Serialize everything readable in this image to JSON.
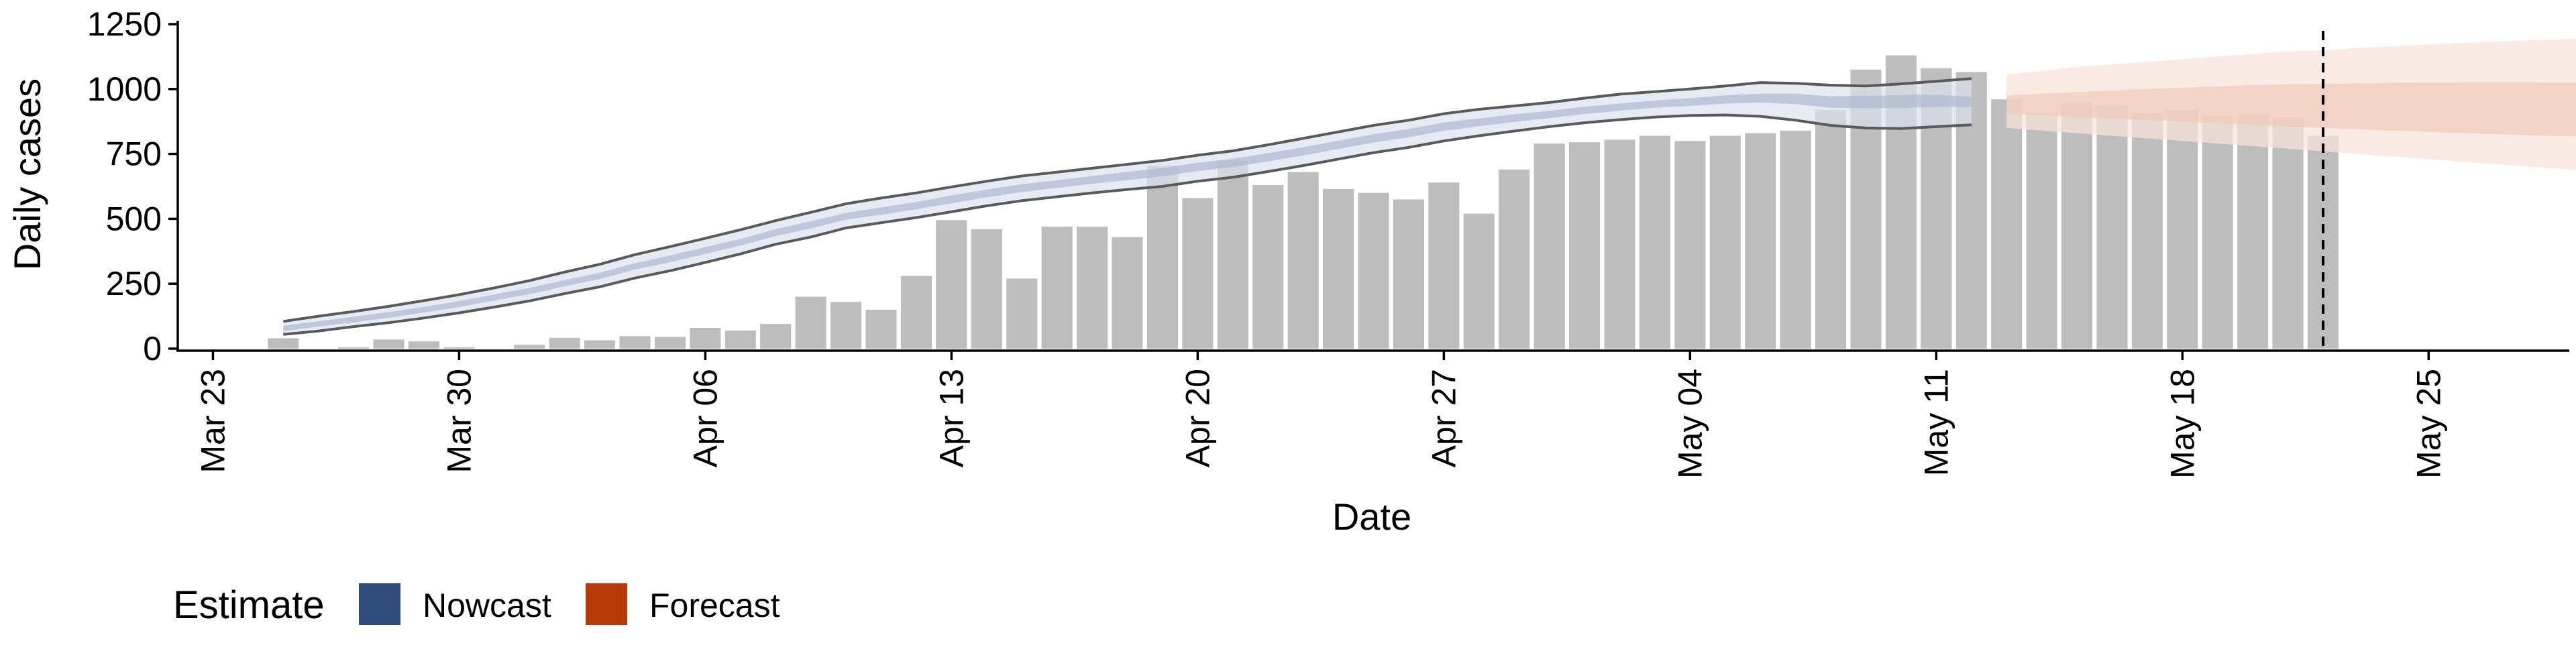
{
  "chart_data": {
    "type": "bar",
    "xlabel": "Date",
    "ylabel": "Daily cases",
    "ylim": [
      0,
      1250
    ],
    "yticks": [
      0,
      250,
      500,
      750,
      1000,
      1250
    ],
    "xticks": [
      {
        "date": "2020-03-23",
        "label": "Mar 23"
      },
      {
        "date": "2020-03-30",
        "label": "Mar 30"
      },
      {
        "date": "2020-04-06",
        "label": "Apr 06"
      },
      {
        "date": "2020-04-13",
        "label": "Apr 13"
      },
      {
        "date": "2020-04-20",
        "label": "Apr 20"
      },
      {
        "date": "2020-04-27",
        "label": "Apr 27"
      },
      {
        "date": "2020-05-04",
        "label": "May 04"
      },
      {
        "date": "2020-05-11",
        "label": "May 11"
      },
      {
        "date": "2020-05-18",
        "label": "May 18"
      },
      {
        "date": "2020-05-25",
        "label": "May 25"
      }
    ],
    "x_range": [
      "2020-03-22",
      "2020-05-29"
    ],
    "reported_cases": {
      "start_date": "2020-03-25",
      "values": [
        40,
        0,
        5,
        35,
        28,
        5,
        0,
        15,
        42,
        32,
        48,
        45,
        80,
        70,
        95,
        200,
        180,
        150,
        280,
        495,
        460,
        270,
        470,
        470,
        430,
        705,
        580,
        725,
        630,
        680,
        615,
        600,
        575,
        640,
        520,
        690,
        790,
        795,
        805,
        820,
        800,
        820,
        830,
        840,
        920,
        1075,
        1130,
        1080,
        1065,
        960,
        910,
        945,
        935,
        905,
        920,
        895,
        900,
        890,
        820
      ]
    },
    "nowcast": {
      "start_date": "2020-03-25",
      "median": [
        78,
        95,
        112,
        130,
        150,
        172,
        197,
        222,
        252,
        280,
        317,
        346,
        378,
        410,
        447,
        477,
        510,
        530,
        551,
        575,
        598,
        618,
        634,
        650,
        665,
        680,
        700,
        716,
        737,
        760,
        785,
        810,
        830,
        855,
        872,
        888,
        902,
        918,
        930,
        942,
        950,
        960,
        965,
        962,
        950,
        950,
        952,
        955,
        950
      ],
      "outer_low": [
        55,
        68,
        85,
        100,
        118,
        138,
        160,
        184,
        212,
        238,
        272,
        300,
        332,
        365,
        402,
        430,
        465,
        485,
        505,
        527,
        550,
        570,
        585,
        600,
        613,
        625,
        645,
        660,
        682,
        705,
        730,
        755,
        775,
        800,
        820,
        838,
        855,
        870,
        882,
        892,
        898,
        900,
        895,
        880,
        860,
        850,
        848,
        855,
        862
      ],
      "outer_high": [
        105,
        125,
        143,
        163,
        185,
        208,
        234,
        262,
        295,
        325,
        362,
        393,
        425,
        458,
        493,
        525,
        558,
        580,
        600,
        623,
        645,
        665,
        680,
        695,
        710,
        725,
        745,
        762,
        785,
        810,
        835,
        860,
        880,
        905,
        922,
        935,
        948,
        965,
        980,
        990,
        1000,
        1012,
        1025,
        1022,
        1015,
        1012,
        1020,
        1030,
        1040
      ],
      "inner_low": [
        68,
        85,
        101,
        119,
        139,
        161,
        185,
        210,
        240,
        268,
        305,
        333,
        365,
        397,
        434,
        463,
        497,
        516,
        537,
        560,
        583,
        603,
        619,
        635,
        649,
        664,
        684,
        700,
        721,
        744,
        769,
        794,
        814,
        839,
        857,
        873,
        888,
        904,
        916,
        928,
        935,
        944,
        948,
        942,
        928,
        926,
        927,
        932,
        930
      ],
      "inner_high": [
        88,
        105,
        123,
        141,
        161,
        183,
        209,
        234,
        264,
        292,
        329,
        359,
        391,
        423,
        460,
        491,
        523,
        544,
        565,
        590,
        613,
        633,
        649,
        665,
        681,
        696,
        716,
        732,
        753,
        776,
        801,
        826,
        846,
        871,
        887,
        903,
        916,
        932,
        944,
        956,
        965,
        976,
        982,
        982,
        972,
        974,
        977,
        978,
        970
      ]
    },
    "forecast": {
      "start_date": "2020-05-13",
      "outer_low": [
        850,
        840,
        830,
        820,
        810,
        800,
        790,
        780,
        770,
        760,
        750,
        740,
        730,
        720,
        710,
        700,
        690,
        680,
        672
      ],
      "outer_high": [
        1055,
        1070,
        1085,
        1095,
        1105,
        1115,
        1125,
        1135,
        1145,
        1150,
        1158,
        1165,
        1172,
        1178,
        1183,
        1188,
        1193,
        1196,
        1198
      ],
      "inner_low": [
        905,
        898,
        892,
        886,
        880,
        874,
        868,
        862,
        856,
        850,
        845,
        840,
        835,
        830,
        826,
        822,
        818,
        815,
        812
      ],
      "inner_high": [
        975,
        982,
        988,
        994,
        1000,
        1005,
        1010,
        1015,
        1018,
        1020,
        1022,
        1024,
        1025,
        1026,
        1026,
        1026,
        1025,
        1024,
        1022
      ]
    },
    "vline_date": "2020-05-22",
    "legend": {
      "title": "Estimate",
      "position": "bottom-left",
      "items": [
        {
          "label": "Nowcast",
          "color": "#2F4B7C"
        },
        {
          "label": "Forecast",
          "color": "#B63A06"
        }
      ]
    },
    "colors": {
      "bar": "#BDBDBD",
      "nowcast_outer": "#DCE1EC",
      "nowcast_inner": "#AEB9D2",
      "nowcast_line": "#5A5A5A",
      "forecast_outer": "#F7E4DB",
      "forecast_inner": "#EDC7B6",
      "forecast_bar_overlay": "#C8A08E",
      "axis": "#000000"
    },
    "grid": false
  }
}
